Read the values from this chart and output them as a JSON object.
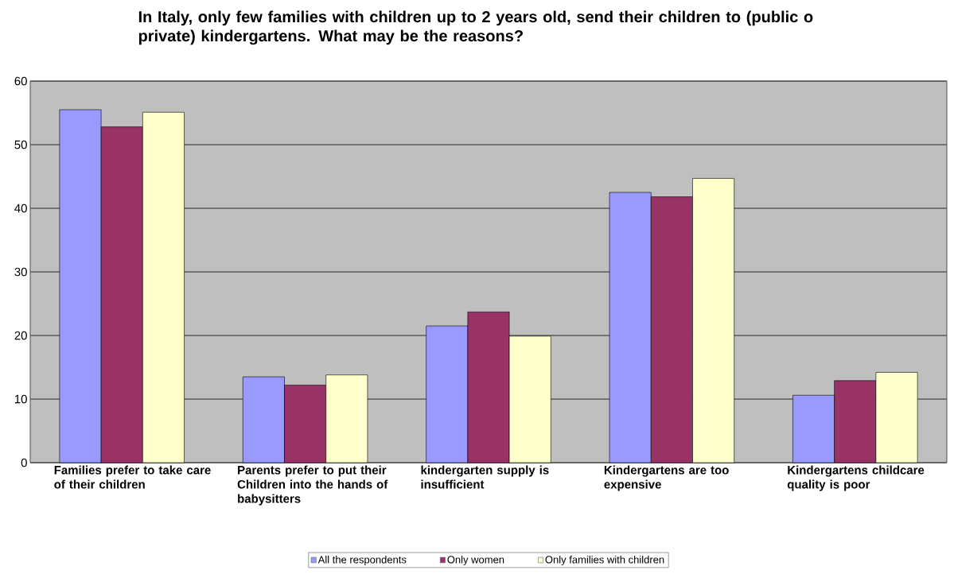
{
  "chart_data": {
    "type": "bar",
    "title": "In Italy, only few families with children up to 2 years old, send their children to (public o private) kindergartens. What may be the reasons?",
    "categories": [
      "Families prefer to  take care of their children",
      "Parents prefer to put their Children into the hands of babysitters",
      "kindergarten supply is insufficient",
      "Kindergartens are too expensive",
      "Kindergartens childcare quality is poor"
    ],
    "series": [
      {
        "name": "All the respondents",
        "color": "#9999ff",
        "values": [
          55.5,
          13.5,
          21.5,
          42.5,
          10.6
        ]
      },
      {
        "name": "Only women",
        "color": "#993366",
        "values": [
          52.8,
          12.2,
          23.7,
          41.8,
          12.9
        ]
      },
      {
        "name": "Only families with children",
        "color": "#ffffcc",
        "values": [
          55.1,
          13.8,
          19.9,
          44.7,
          14.2
        ]
      }
    ],
    "ylim": [
      0,
      60
    ],
    "yticks": [
      0,
      10,
      20,
      30,
      40,
      50,
      60
    ],
    "grid": "y",
    "legend": "bottom"
  }
}
